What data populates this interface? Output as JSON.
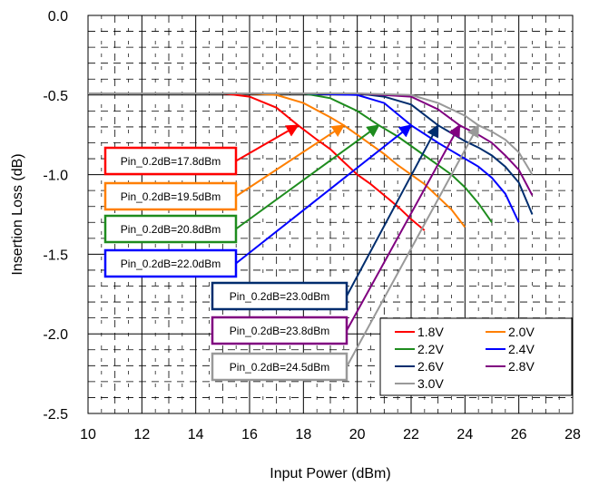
{
  "chart_data": {
    "type": "line",
    "title": "",
    "xlabel": "Input Power (dBm)",
    "ylabel": "Insertion Loss (dB)",
    "xlim": [
      10,
      28
    ],
    "ylim": [
      -2.5,
      0.0
    ],
    "x_ticks": [
      "10",
      "12",
      "14",
      "16",
      "18",
      "20",
      "22",
      "24",
      "26",
      "28"
    ],
    "y_ticks": [
      "0.0",
      "-0.5",
      "-1.0",
      "-1.5",
      "-2.0",
      "-2.5"
    ],
    "grid": true,
    "legend_position": "bottom-right",
    "series": [
      {
        "name": "1.8V",
        "color": "#ff0000",
        "x": [
          10,
          12,
          14,
          15,
          16,
          17,
          17.8,
          18.5,
          19,
          19.5,
          20,
          20.5,
          21,
          21.5,
          22,
          22.5
        ],
        "y": [
          -0.49,
          -0.49,
          -0.49,
          -0.49,
          -0.51,
          -0.58,
          -0.69,
          -0.78,
          -0.84,
          -0.92,
          -1.0,
          -1.06,
          -1.13,
          -1.2,
          -1.28,
          -1.35
        ]
      },
      {
        "name": "2.0V",
        "color": "#ff7f00",
        "x": [
          10,
          12,
          14,
          16,
          17,
          18,
          19,
          19.5,
          20,
          21,
          21.5,
          22,
          22.5,
          23,
          23.5,
          24
        ],
        "y": [
          -0.49,
          -0.49,
          -0.49,
          -0.49,
          -0.5,
          -0.55,
          -0.64,
          -0.69,
          -0.75,
          -0.87,
          -0.94,
          -1.0,
          -1.06,
          -1.14,
          -1.22,
          -1.33
        ]
      },
      {
        "name": "2.2V",
        "color": "#1e8c1e",
        "x": [
          10,
          12,
          14,
          16,
          18,
          19,
          20,
          20.8,
          21.5,
          22.5,
          23,
          23.5,
          24,
          24.5,
          25
        ],
        "y": [
          -0.49,
          -0.49,
          -0.49,
          -0.49,
          -0.49,
          -0.52,
          -0.6,
          -0.69,
          -0.76,
          -0.88,
          -0.94,
          -1.0,
          -1.08,
          -1.18,
          -1.3
        ]
      },
      {
        "name": "2.4V",
        "color": "#0000ff",
        "x": [
          10,
          12,
          14,
          16,
          18,
          20,
          21,
          22,
          23,
          23.5,
          24,
          24.5,
          25,
          25.5,
          26
        ],
        "y": [
          -0.49,
          -0.49,
          -0.49,
          -0.49,
          -0.49,
          -0.5,
          -0.55,
          -0.69,
          -0.8,
          -0.85,
          -0.9,
          -0.95,
          -1.02,
          -1.12,
          -1.3
        ]
      },
      {
        "name": "2.6V",
        "color": "#002d6e",
        "x": [
          10,
          12,
          14,
          16,
          18,
          20,
          21,
          22,
          23,
          23.5,
          24,
          24.5,
          25,
          25.5,
          26,
          26.5
        ],
        "y": [
          -0.49,
          -0.49,
          -0.49,
          -0.49,
          -0.49,
          -0.49,
          -0.51,
          -0.56,
          -0.69,
          -0.74,
          -0.79,
          -0.83,
          -0.88,
          -0.95,
          -1.05,
          -1.25
        ]
      },
      {
        "name": "2.8V",
        "color": "#800080",
        "x": [
          10,
          12,
          14,
          16,
          18,
          20,
          22,
          23,
          23.8,
          24.5,
          25,
          25.5,
          26,
          26.5
        ],
        "y": [
          -0.49,
          -0.49,
          -0.49,
          -0.49,
          -0.49,
          -0.49,
          -0.51,
          -0.59,
          -0.69,
          -0.75,
          -0.8,
          -0.88,
          -0.97,
          -1.13
        ]
      },
      {
        "name": "3.0V",
        "color": "#999999",
        "x": [
          10,
          12,
          14,
          16,
          18,
          20,
          22,
          23,
          24,
          24.5,
          25,
          25.5,
          26,
          26.5
        ],
        "y": [
          -0.49,
          -0.49,
          -0.49,
          -0.49,
          -0.49,
          -0.49,
          -0.5,
          -0.55,
          -0.63,
          -0.69,
          -0.73,
          -0.78,
          -0.86,
          -1.0
        ]
      }
    ],
    "annotations": [
      {
        "text": "Pin_0.2dB=17.8dBm",
        "color": "#ff0000",
        "target_x": 17.8,
        "target_y": -0.69
      },
      {
        "text": "Pin_0.2dB=19.5dBm",
        "color": "#ff7f00",
        "target_x": 19.5,
        "target_y": -0.69
      },
      {
        "text": "Pin_0.2dB=20.8dBm",
        "color": "#1e8c1e",
        "target_x": 20.8,
        "target_y": -0.69
      },
      {
        "text": "Pin_0.2dB=22.0dBm",
        "color": "#0000ff",
        "target_x": 22.0,
        "target_y": -0.69
      },
      {
        "text": "Pin_0.2dB=23.0dBm",
        "color": "#002d6e",
        "target_x": 23.0,
        "target_y": -0.69
      },
      {
        "text": "Pin_0.2dB=23.8dBm",
        "color": "#800080",
        "target_x": 23.8,
        "target_y": -0.69
      },
      {
        "text": "Pin_0.2dB=24.5dBm",
        "color": "#999999",
        "target_x": 24.5,
        "target_y": -0.69
      }
    ]
  }
}
